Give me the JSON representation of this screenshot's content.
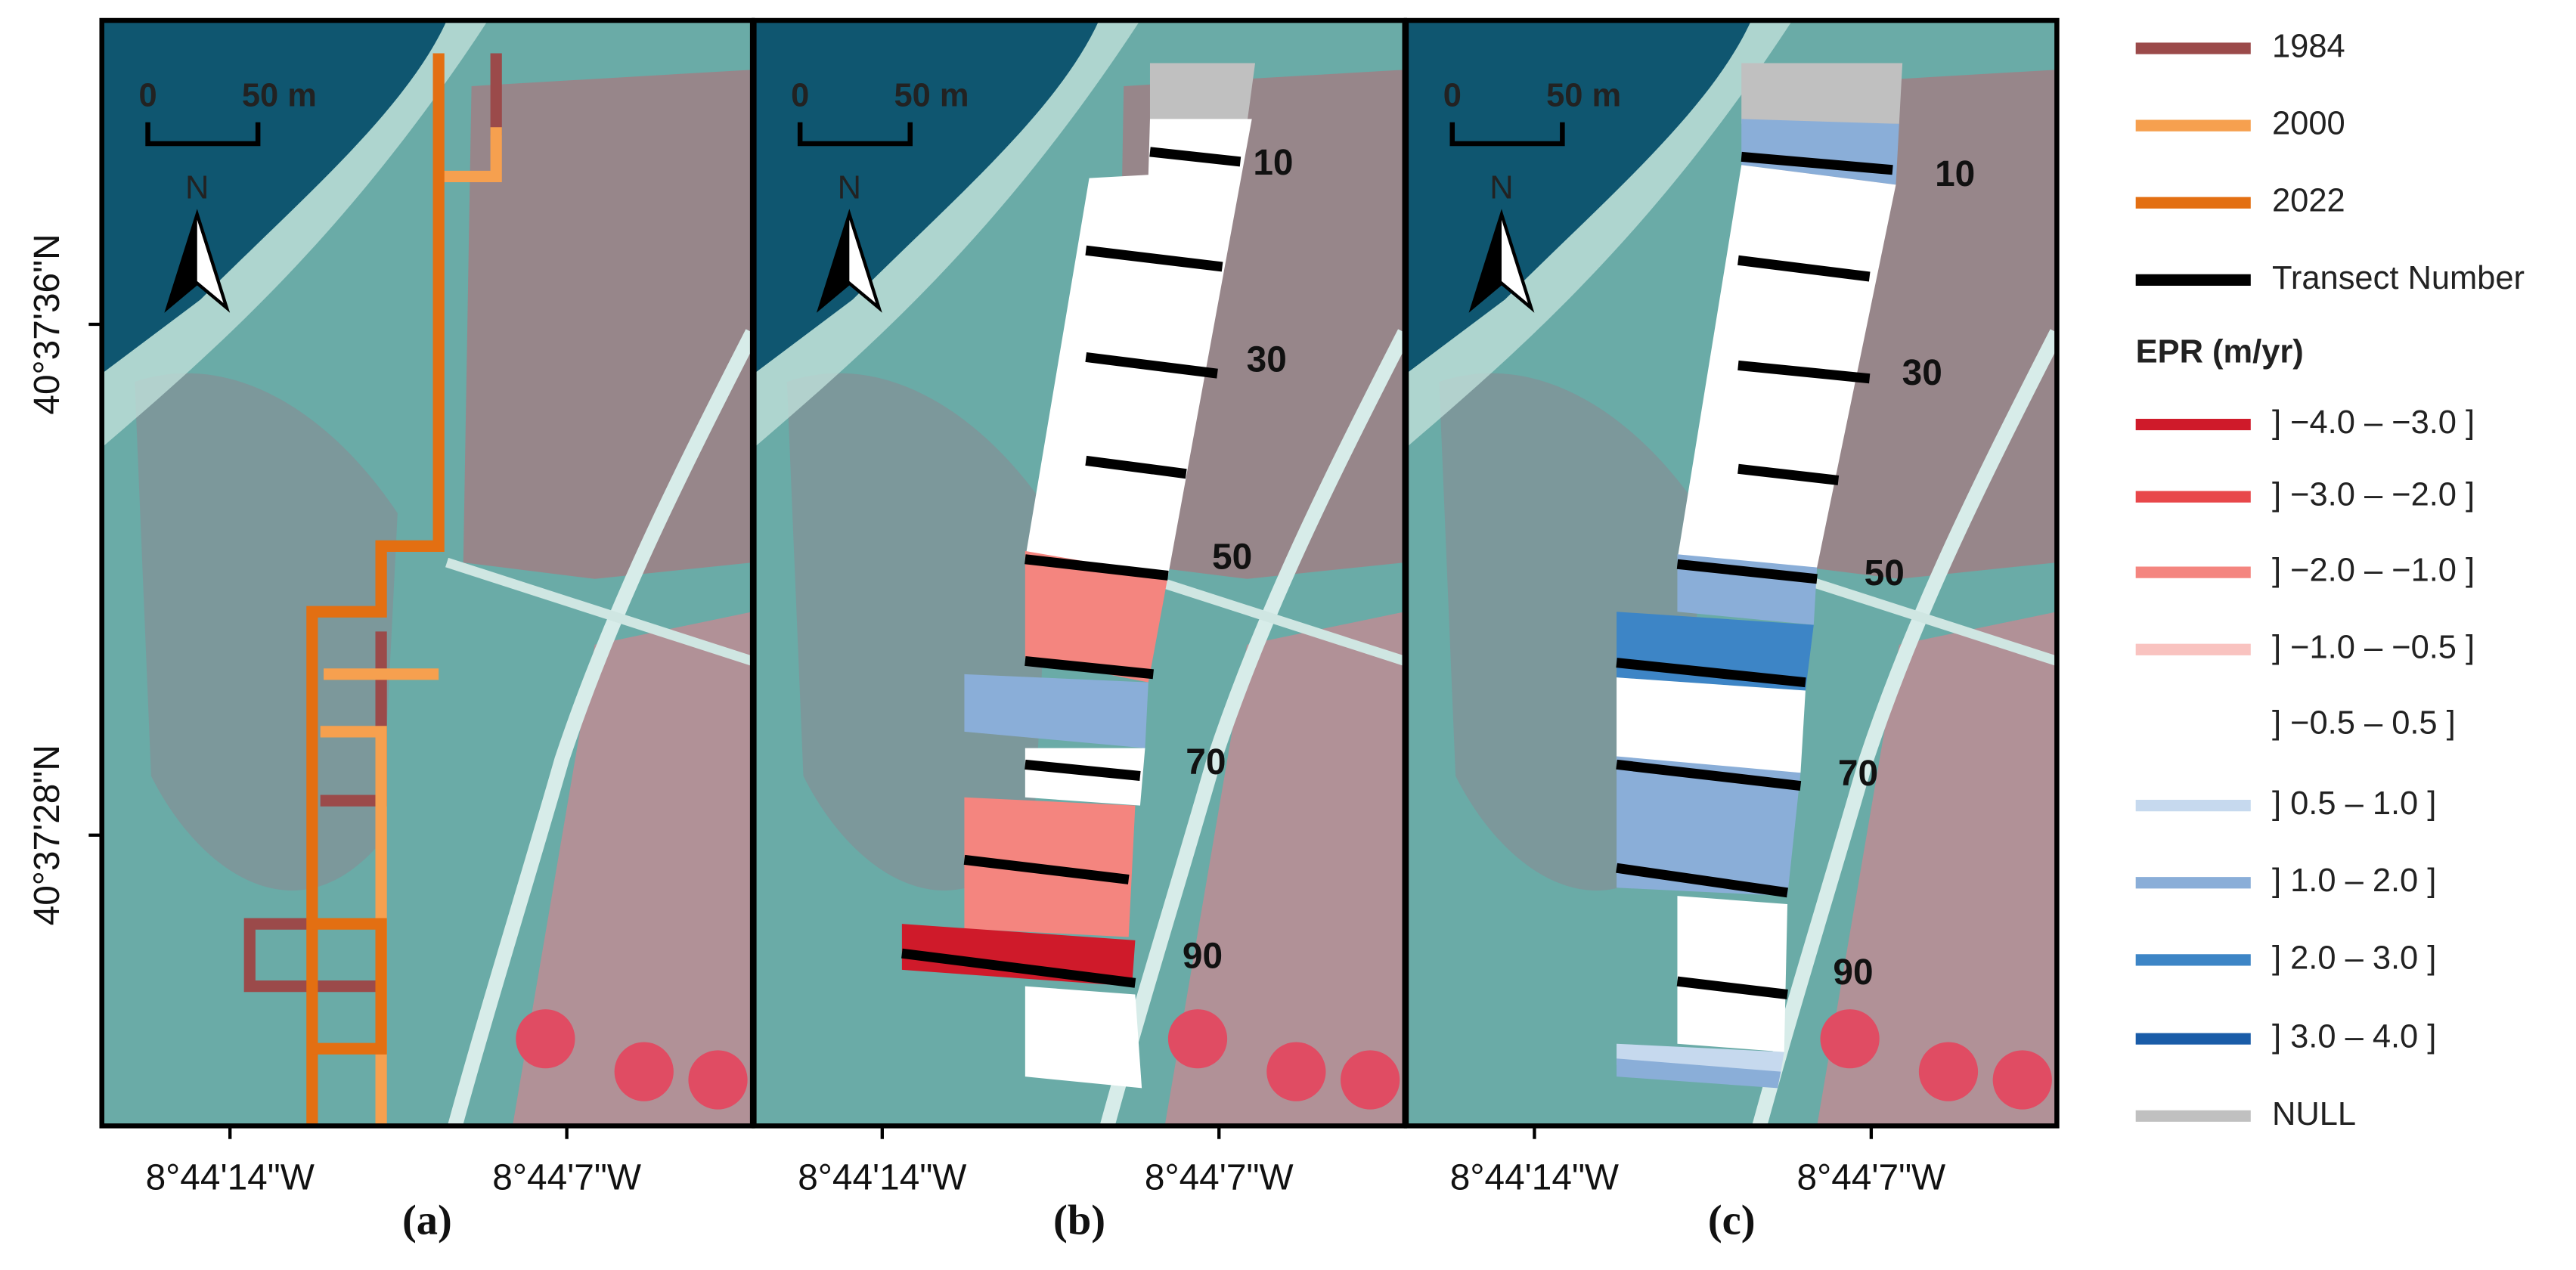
{
  "panels": [
    {
      "label": "(a)"
    },
    {
      "label": "(b)"
    },
    {
      "label": "(c)"
    }
  ],
  "scale_bar": {
    "start": "0",
    "end": "50 m"
  },
  "north": "N",
  "y_axis_labels": [
    "40°37'36\"N",
    "40°37'28\"N"
  ],
  "x_axis_labels": [
    "8°44'14\"W",
    "8°44'7\"W"
  ],
  "transect_labels": [
    "10",
    "30",
    "50",
    "70",
    "90"
  ],
  "legend": {
    "lines": [
      {
        "label": "1984",
        "color": "#9b4a4a"
      },
      {
        "label": "2000",
        "color": "#f6a04f"
      },
      {
        "label": "2022",
        "color": "#e36f12"
      },
      {
        "label": "Transect Number",
        "color": "#000000"
      }
    ],
    "epr_title": "EPR (m/yr)",
    "epr_items": [
      {
        "label": "] −4.0 – −3.0 ]",
        "color": "#cf1a2a"
      },
      {
        "label": "] −3.0 – −2.0 ]",
        "color": "#e8474a"
      },
      {
        "label": "] −2.0 – −1.0 ]",
        "color": "#f4857f"
      },
      {
        "label": "] −1.0 – −0.5 ]",
        "color": "#f9c3c0"
      },
      {
        "label": "] −0.5 – 0.5 ]",
        "color": "#ffffff"
      },
      {
        "label": "] 0.5 – 1.0 ]",
        "color": "#c6d9ee"
      },
      {
        "label": "] 1.0 – 2.0 ]",
        "color": "#8aaed8"
      },
      {
        "label": "] 2.0 – 3.0 ]",
        "color": "#3d85c6"
      },
      {
        "label": "] 3.0 – 4.0 ]",
        "color": "#1a5ca8"
      },
      {
        "label": "NULL",
        "color": "#c0c0c0"
      }
    ]
  }
}
